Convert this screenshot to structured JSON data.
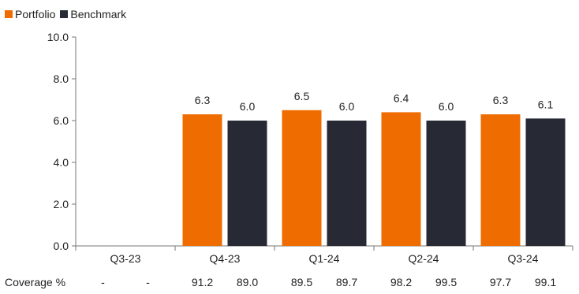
{
  "colors": {
    "portfolio": "#ef6c00",
    "benchmark": "#272a35",
    "axis": "#777777"
  },
  "chart_data": {
    "type": "bar",
    "categories": [
      "Q3-23",
      "Q4-23",
      "Q1-24",
      "Q2-24",
      "Q3-24"
    ],
    "series": [
      {
        "name": "Portfolio",
        "values": [
          null,
          6.3,
          6.5,
          6.4,
          6.3
        ]
      },
      {
        "name": "Benchmark",
        "values": [
          null,
          6.0,
          6.0,
          6.0,
          6.1
        ]
      }
    ],
    "y_ticks": [
      "0.0",
      "2.0",
      "4.0",
      "6.0",
      "8.0",
      "10.0"
    ],
    "ylim": [
      0,
      10
    ],
    "grid": false,
    "legend_position": "top-left",
    "coverage": {
      "label": "Coverage %",
      "values": [
        [
          "-",
          "-"
        ],
        [
          "91.2",
          "89.0"
        ],
        [
          "89.5",
          "89.7"
        ],
        [
          "98.2",
          "99.5"
        ],
        [
          "97.7",
          "99.1"
        ]
      ]
    }
  }
}
